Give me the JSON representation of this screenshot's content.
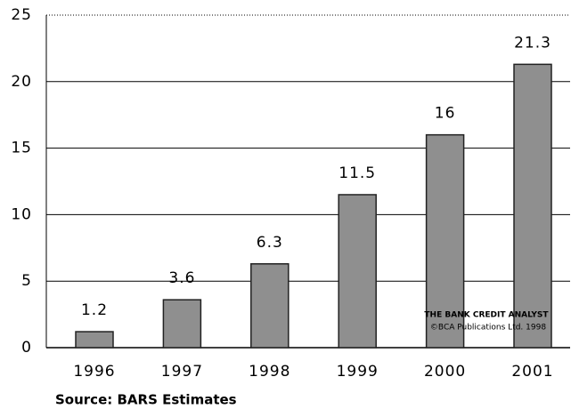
{
  "chart_data": {
    "type": "bar",
    "categories": [
      "1996",
      "1997",
      "1998",
      "1999",
      "2000",
      "2001"
    ],
    "values": [
      1.2,
      3.6,
      6.3,
      11.5,
      16,
      21.3
    ],
    "color": "#8f8f8f",
    "ylim": [
      0,
      25
    ],
    "yticks": [
      0,
      5,
      10,
      15,
      20,
      25
    ],
    "grid": true,
    "source": "Source: BARS Estimates",
    "watermark": [
      "THE BANK CREDIT ANALYST",
      "©BCA Publications Ltd. 1998"
    ]
  }
}
